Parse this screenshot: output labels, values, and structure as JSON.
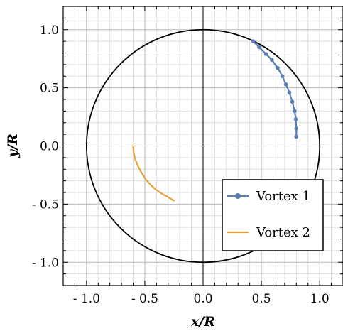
{
  "chart_data": {
    "type": "line",
    "xlabel": "x/R",
    "ylabel": "y/R",
    "xlim": [
      -1.2,
      1.2
    ],
    "ylim": [
      -1.2,
      1.2
    ],
    "grid": true,
    "grid_minor_step": 0.1,
    "x_ticks": [
      {
        "value": -1.0,
        "label": "- 1.0"
      },
      {
        "value": -0.5,
        "label": "- 0.5"
      },
      {
        "value": 0.0,
        "label": "0.0"
      },
      {
        "value": 0.5,
        "label": "0.5"
      },
      {
        "value": 1.0,
        "label": "1.0"
      }
    ],
    "y_ticks": [
      {
        "value": 1.0,
        "label": "1.0"
      },
      {
        "value": 0.5,
        "label": "0.5"
      },
      {
        "value": 0.0,
        "label": "0.0"
      },
      {
        "value": -0.5,
        "label": "- 0.5"
      },
      {
        "value": -1.0,
        "label": "- 1.0"
      }
    ],
    "reference_circle": {
      "cx": 0,
      "cy": 0,
      "r": 1.0,
      "color": "#000000"
    },
    "legend_position": "bottom-right",
    "series": [
      {
        "name": "Vortex 1",
        "color": "#5b7fb4",
        "markers": true,
        "x": [
          0.43,
          0.48,
          0.54,
          0.59,
          0.64,
          0.68,
          0.71,
          0.74,
          0.765,
          0.785,
          0.795,
          0.8,
          0.8
        ],
        "y": [
          0.9,
          0.85,
          0.79,
          0.74,
          0.67,
          0.6,
          0.53,
          0.46,
          0.38,
          0.3,
          0.23,
          0.15,
          0.08
        ]
      },
      {
        "name": "Vortex 2",
        "color": "#e8a23a",
        "markers": false,
        "x": [
          -0.6,
          -0.595,
          -0.58,
          -0.555,
          -0.525,
          -0.49,
          -0.45,
          -0.405,
          -0.355,
          -0.3,
          -0.25
        ],
        "y": [
          0.0,
          -0.06,
          -0.12,
          -0.18,
          -0.235,
          -0.29,
          -0.335,
          -0.375,
          -0.41,
          -0.44,
          -0.47
        ]
      }
    ]
  }
}
